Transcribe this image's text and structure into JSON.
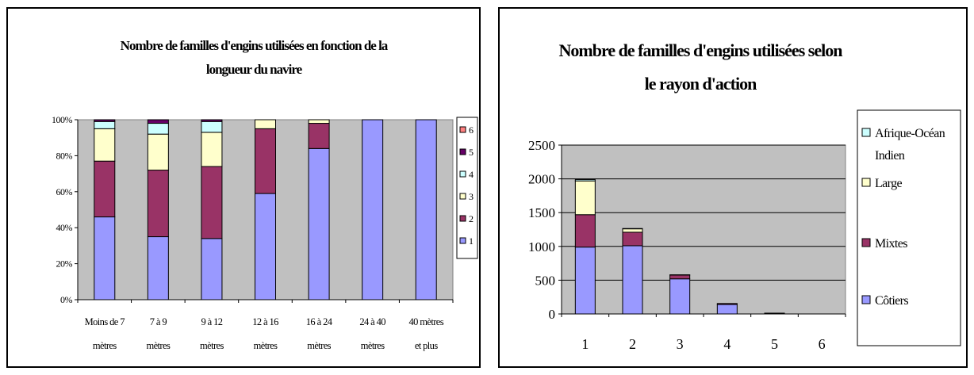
{
  "chart_data": [
    {
      "type": "bar",
      "stacked": "percent",
      "title": "Nombre de familles d'engins utilisées en fonction de la longueur du navire",
      "title_lines": [
        "Nombre de familles d'engins utilisées en fonction de la",
        "longueur du navire"
      ],
      "categories": [
        "Moins de 7 mètres",
        "7 à 9 mètres",
        "9 à 12 mètres",
        "12 à 16 mètres",
        "16 à 24 mètres",
        "24 à 40 mètres",
        "40 mètres et plus"
      ],
      "category_lines": [
        [
          "Moins de 7",
          "mètres"
        ],
        [
          "7 à 9",
          "mètres"
        ],
        [
          "9 à 12",
          "mètres"
        ],
        [
          "12 à 16",
          "mètres"
        ],
        [
          "16 à 24",
          "mètres"
        ],
        [
          "24 à 40",
          "mètres"
        ],
        [
          "40 mètres",
          "et plus"
        ]
      ],
      "ylim": [
        0,
        100
      ],
      "y_ticks": [
        "0%",
        "20%",
        "40%",
        "60%",
        "80%",
        "100%"
      ],
      "legend_position": "right",
      "grid": false,
      "series": [
        {
          "name": "1",
          "color": "#9999ff",
          "values": [
            46,
            35,
            34,
            59,
            84,
            100,
            100
          ]
        },
        {
          "name": "2",
          "color": "#993366",
          "values": [
            31,
            37,
            40,
            36,
            14,
            0,
            0
          ]
        },
        {
          "name": "3",
          "color": "#ffffcc",
          "values": [
            18,
            20,
            19,
            5,
            2,
            0,
            0
          ]
        },
        {
          "name": "4",
          "color": "#ccffff",
          "values": [
            4,
            6,
            6,
            0,
            0,
            0,
            0
          ]
        },
        {
          "name": "5",
          "color": "#660066",
          "values": [
            1,
            2,
            1,
            0,
            0,
            0,
            0
          ]
        },
        {
          "name": "6",
          "color": "#ff8080",
          "values": [
            0,
            0,
            0,
            0,
            0,
            0,
            0
          ]
        }
      ]
    },
    {
      "type": "bar",
      "stacked": "normal",
      "title": "Nombre de familles d'engins utilisées selon le rayon d'action",
      "title_lines": [
        "Nombre de familles d'engins utilisées selon",
        "le rayon d'action"
      ],
      "categories": [
        "1",
        "2",
        "3",
        "4",
        "5",
        "6"
      ],
      "ylim": [
        0,
        2500
      ],
      "y_ticks": [
        "0",
        "500",
        "1000",
        "1500",
        "2000",
        "2500"
      ],
      "legend_position": "right",
      "grid": true,
      "series": [
        {
          "name": "Côtiers",
          "color": "#9999ff",
          "values": [
            990,
            1010,
            520,
            140,
            10,
            0
          ]
        },
        {
          "name": "Mixtes",
          "color": "#993366",
          "values": [
            480,
            200,
            55,
            15,
            2,
            0
          ]
        },
        {
          "name": "Large",
          "color": "#ffffcc",
          "values": [
            500,
            50,
            5,
            0,
            0,
            0
          ]
        },
        {
          "name": "Afrique-Océan Indien",
          "color": "#ccffff",
          "legend_lines": [
            "Afrique-Océan",
            "Indien"
          ],
          "values": [
            20,
            5,
            0,
            0,
            0,
            0
          ]
        }
      ]
    }
  ]
}
